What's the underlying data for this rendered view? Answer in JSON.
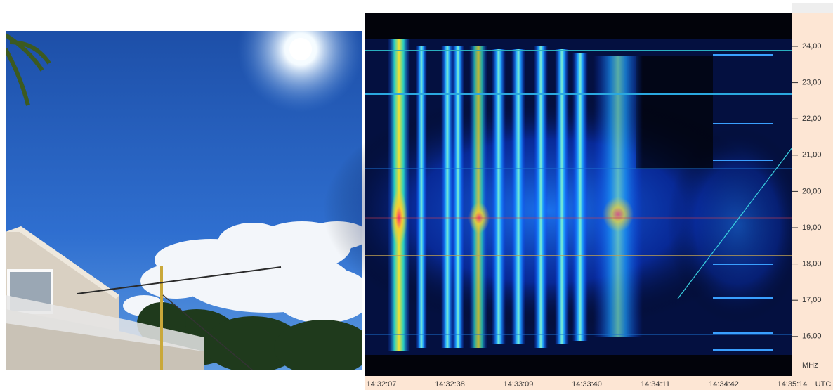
{
  "spectrogram": {
    "frequency_labels": [
      "24,00",
      "23,00",
      "22,00",
      "21,00",
      "20,00",
      "19,00",
      "18,00",
      "17,00",
      "16,00"
    ],
    "frequency_unit": "MHz",
    "time_labels": [
      "14:32:07",
      "14:32:38",
      "14:33:09",
      "14:33:40",
      "14:34:11",
      "14:34:42",
      "14:35:14"
    ],
    "time_unit": "UTC"
  }
}
